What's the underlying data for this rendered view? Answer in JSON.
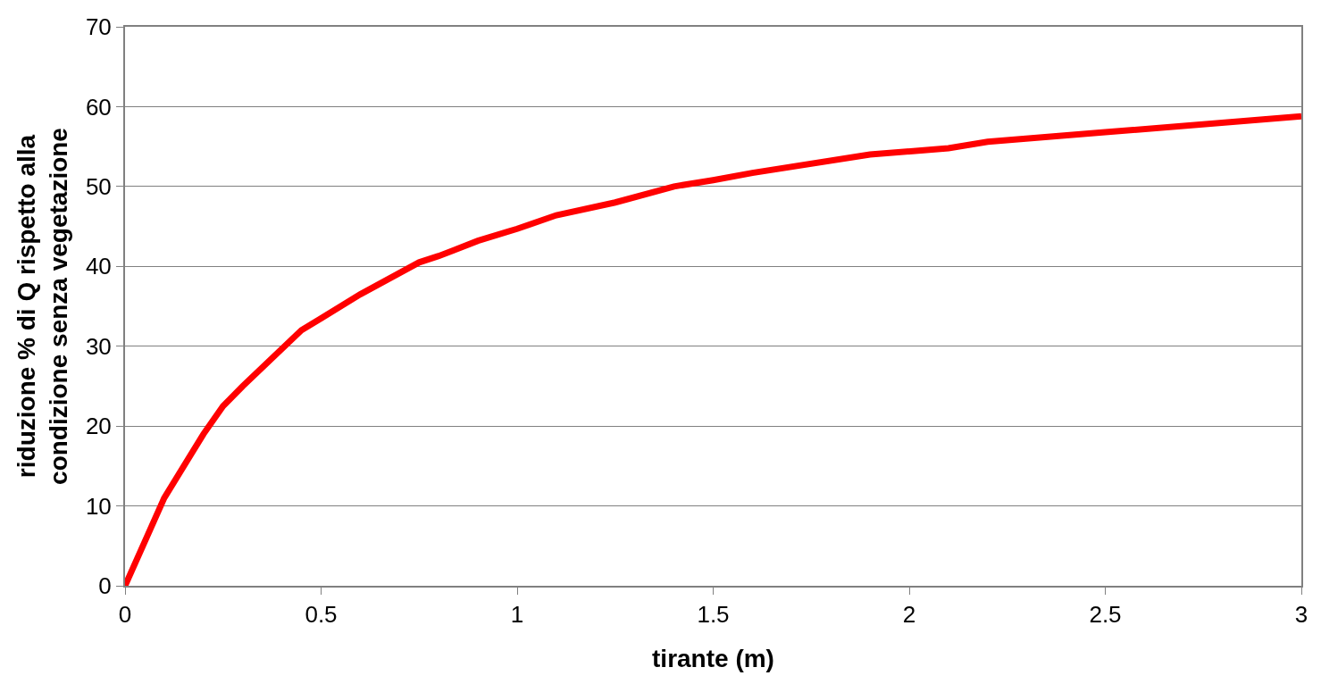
{
  "chart_data": {
    "type": "line",
    "xlabel": "tirante (m)",
    "ylabel": "riduzione % di Q rispetto alla\ncondizione senza vegetazione",
    "x": [
      0,
      0.05,
      0.1,
      0.2,
      0.25,
      0.3,
      0.45,
      0.5,
      0.6,
      0.75,
      0.8,
      0.9,
      1.0,
      1.1,
      1.25,
      1.4,
      1.5,
      1.6,
      1.9,
      2.1,
      2.2,
      2.5,
      3
    ],
    "series": [
      {
        "color": "#ff0000",
        "values": [
          0,
          5.5,
          11,
          19,
          22.5,
          25,
          32,
          33.5,
          36.5,
          40.5,
          41.3,
          43.2,
          44.7,
          46.4,
          48,
          50,
          50.8,
          51.7,
          54,
          54.8,
          55.6,
          56.8,
          58.8
        ]
      }
    ],
    "xlim": [
      0,
      3
    ],
    "xticks": [
      0,
      0.5,
      1,
      1.5,
      2,
      2.5,
      3
    ],
    "ylim": [
      0,
      70
    ],
    "yticks": [
      0,
      10,
      20,
      30,
      40,
      50,
      60,
      70
    ],
    "grid": "y",
    "legend": false,
    "marker": "none",
    "line_style": "solid"
  }
}
